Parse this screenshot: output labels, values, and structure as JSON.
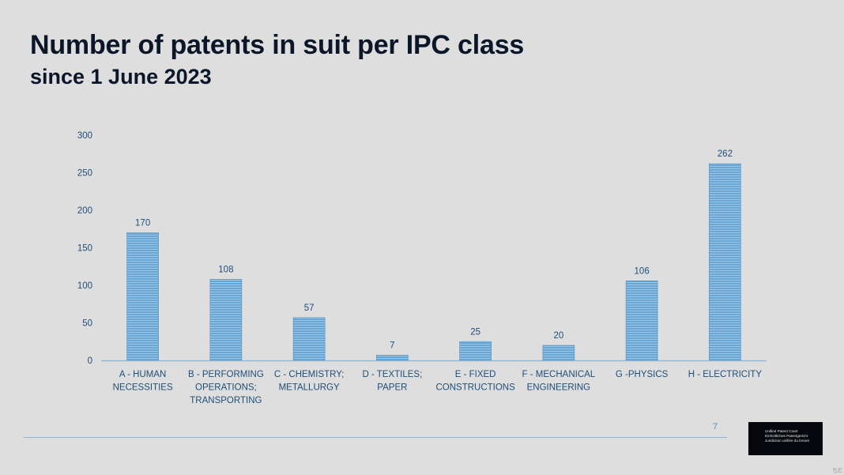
{
  "slide": {
    "title": "Number of patents in suit per IPC class",
    "subtitle": "since 1 June 2023",
    "page_number": "7",
    "corner_text": "ちE"
  },
  "logo": {
    "lines": [
      "Unified Patent Court",
      "Einheitliches Patentgericht",
      "Juridiction unifiée du brevet"
    ]
  },
  "chart_data": {
    "type": "bar",
    "title": "",
    "xlabel": "",
    "ylabel": "",
    "categories": [
      [
        "A - HUMAN",
        "NECESSITIES"
      ],
      [
        "B - PERFORMING",
        "OPERATIONS;",
        "TRANSPORTING"
      ],
      [
        "C - CHEMISTRY;",
        "METALLURGY"
      ],
      [
        "D - TEXTILES;",
        "PAPER"
      ],
      [
        "E - FIXED",
        "CONSTRUCTIONS"
      ],
      [
        "F - MECHANICAL",
        "ENGINEERING"
      ],
      [
        "G -PHYSICS"
      ],
      [
        "H - ELECTRICITY"
      ]
    ],
    "values": [
      170,
      108,
      57,
      7,
      25,
      20,
      106,
      262
    ],
    "ylim": [
      0,
      300
    ],
    "yticks": [
      0,
      50,
      100,
      150,
      200,
      250,
      300
    ],
    "grid": false,
    "data_labels": true,
    "colors": {
      "bar": "#6aa6d3",
      "bar_stripe": "#9cc7e6",
      "bar_edge": "#4f8fc2",
      "axis": "#8fb4d3",
      "text": "#1f4e79"
    }
  }
}
